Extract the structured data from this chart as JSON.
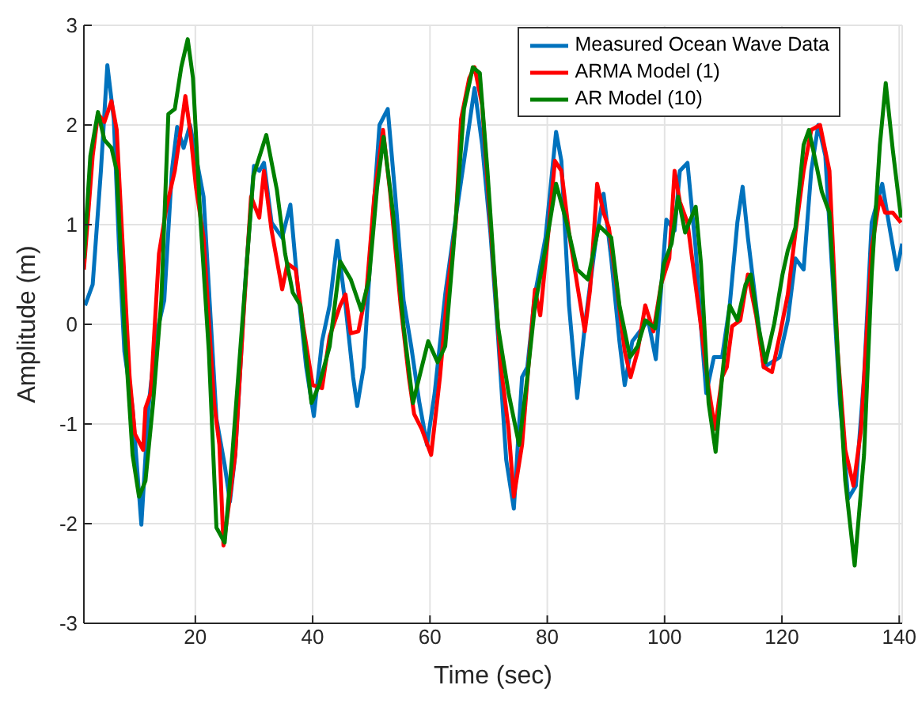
{
  "chart_data": {
    "type": "line",
    "xlabel": "Time (sec)",
    "ylabel": "Amplitude (m)",
    "xlim": [
      1,
      140.5
    ],
    "ylim": [
      -3,
      3
    ],
    "xticks": [
      20,
      40,
      60,
      80,
      100,
      120,
      140
    ],
    "yticks": [
      -3,
      -2,
      -1,
      0,
      1,
      2,
      3
    ],
    "grid": true,
    "legend": "top right",
    "marker": "none",
    "line_style": "solid",
    "series": [
      {
        "name": "Measured Ocean Wave Data",
        "color": "#0072bd",
        "x": [
          1.2,
          2.5,
          3.9,
          5.0,
          6.1,
          7.0,
          7.9,
          9.3,
          10.8,
          12.0,
          13.3,
          14.7,
          16.0,
          16.9,
          18.0,
          19.1,
          21.4,
          23.6,
          25.0,
          25.9,
          26.8,
          28.6,
          30.0,
          30.9,
          31.7,
          33.0,
          34.8,
          36.2,
          37.5,
          38.9,
          40.2,
          41.6,
          42.9,
          44.2,
          45.6,
          46.9,
          47.6,
          48.7,
          50.1,
          51.4,
          52.8,
          54.1,
          55.5,
          56.8,
          58.2,
          59.5,
          60.8,
          62.6,
          64.4,
          66.2,
          67.6,
          68.9,
          70.3,
          71.6,
          73.0,
          74.3,
          75.7,
          76.6,
          77.9,
          79.7,
          81.5,
          82.4,
          83.7,
          85.1,
          86.4,
          88.2,
          89.6,
          90.9,
          92.3,
          93.2,
          94.5,
          95.8,
          97.2,
          98.5,
          100.3,
          101.7,
          102.6,
          103.9,
          105.3,
          106.2,
          107.1,
          108.4,
          109.8,
          111.1,
          112.4,
          113.3,
          114.2,
          115.6,
          116.9,
          118.3,
          119.6,
          121.0,
          122.3,
          123.7,
          125.0,
          126.2,
          127.4,
          128.6,
          129.9,
          131.3,
          132.6,
          134.0,
          135.3,
          137.1,
          138.5,
          139.6,
          140.5
        ],
        "values": [
          0.19,
          0.4,
          1.54,
          2.6,
          2.06,
          0.76,
          -0.27,
          -0.84,
          -2.01,
          -0.84,
          -0.12,
          0.24,
          1.54,
          1.98,
          1.77,
          2.0,
          1.28,
          -0.95,
          -1.41,
          -1.78,
          -1.31,
          0.5,
          1.59,
          1.54,
          1.62,
          1.02,
          0.87,
          1.2,
          0.35,
          -0.43,
          -0.92,
          -0.17,
          0.19,
          0.84,
          0.19,
          -0.53,
          -0.82,
          -0.43,
          0.92,
          2.0,
          2.16,
          1.28,
          0.24,
          -0.22,
          -0.79,
          -1.21,
          -0.69,
          0.3,
          1.07,
          1.8,
          2.37,
          1.8,
          0.92,
          -0.12,
          -1.36,
          -1.85,
          -0.53,
          -0.43,
          0.3,
          0.87,
          1.93,
          1.64,
          0.19,
          -0.74,
          -0.02,
          0.81,
          1.31,
          0.66,
          -0.17,
          -0.61,
          -0.17,
          -0.07,
          0.04,
          -0.35,
          1.05,
          0.94,
          1.54,
          1.62,
          0.76,
          -0.02,
          -0.69,
          -0.33,
          -0.33,
          0.19,
          1.02,
          1.38,
          0.87,
          0.19,
          -0.43,
          -0.38,
          -0.33,
          0.04,
          0.66,
          0.55,
          1.54,
          2.0,
          1.69,
          0.5,
          -0.79,
          -1.75,
          -1.62,
          -0.53,
          1.02,
          1.41,
          0.92,
          0.55,
          0.81
        ]
      },
      {
        "name": "ARMA Model (1)",
        "color": "#ff0000",
        "x": [
          1.0,
          2.5,
          3.4,
          4.5,
          5.7,
          6.6,
          7.5,
          8.8,
          9.7,
          11.1,
          11.5,
          12.4,
          13.8,
          15.1,
          16.5,
          17.4,
          18.3,
          19.2,
          20.1,
          21.4,
          23.2,
          24.1,
          24.8,
          25.9,
          26.8,
          28.1,
          29.5,
          30.9,
          31.7,
          33.0,
          34.8,
          35.7,
          37.1,
          38.4,
          40.0,
          41.6,
          42.9,
          44.7,
          45.6,
          46.5,
          47.8,
          49.2,
          50.5,
          52.0,
          53.2,
          55.0,
          56.4,
          57.3,
          58.6,
          60.2,
          61.7,
          63.1,
          64.4,
          65.3,
          66.7,
          67.6,
          68.9,
          70.3,
          72.1,
          73.4,
          74.3,
          75.7,
          77.0,
          77.9,
          78.8,
          80.1,
          81.3,
          82.4,
          83.7,
          85.1,
          86.4,
          87.3,
          88.5,
          89.6,
          90.5,
          91.8,
          93.2,
          94.2,
          95.4,
          96.7,
          98.1,
          99.4,
          100.8,
          101.7,
          102.6,
          103.9,
          104.8,
          106.2,
          107.5,
          108.6,
          109.8,
          110.6,
          111.5,
          112.9,
          114.2,
          115.6,
          116.9,
          118.3,
          119.6,
          121.0,
          122.3,
          123.7,
          125.0,
          126.5,
          128.1,
          129.5,
          130.8,
          132.2,
          133.5,
          135.3,
          136.7,
          137.6,
          138.9,
          140.3
        ],
        "values": [
          0.55,
          1.69,
          2.11,
          2.03,
          2.24,
          1.95,
          0.92,
          -0.53,
          -1.1,
          -1.26,
          -0.84,
          -0.69,
          0.71,
          1.18,
          1.54,
          1.9,
          2.29,
          1.9,
          1.38,
          0.87,
          -0.79,
          -1.21,
          -2.22,
          -1.73,
          -1.31,
          -0.02,
          1.28,
          1.07,
          1.54,
          0.94,
          0.35,
          0.61,
          0.55,
          -0.02,
          -0.61,
          -0.64,
          -0.12,
          0.19,
          0.3,
          -0.09,
          -0.07,
          0.35,
          1.28,
          1.95,
          1.33,
          0.19,
          -0.53,
          -0.9,
          -1.05,
          -1.31,
          -0.53,
          0.4,
          1.02,
          2.06,
          2.47,
          2.58,
          2.2,
          1.02,
          -0.43,
          -1.05,
          -1.73,
          -1.21,
          -0.27,
          0.35,
          0.09,
          0.87,
          1.64,
          1.54,
          0.92,
          0.4,
          -0.07,
          0.35,
          1.41,
          1.12,
          0.97,
          0.4,
          -0.27,
          -0.53,
          -0.27,
          0.19,
          -0.07,
          0.4,
          0.66,
          1.54,
          1.23,
          1.02,
          0.61,
          -0.02,
          -0.64,
          -1.05,
          -0.53,
          -0.43,
          -0.02,
          0.04,
          0.5,
          0.09,
          -0.43,
          -0.48,
          -0.12,
          0.3,
          0.92,
          1.54,
          1.95,
          2.0,
          1.54,
          -0.27,
          -1.26,
          -1.62,
          -1.05,
          0.76,
          1.28,
          1.12,
          1.12,
          1.02
        ]
      },
      {
        "name": "AR Model (10)",
        "color": "#008000",
        "x": [
          1.0,
          2.1,
          3.4,
          4.5,
          5.7,
          6.6,
          7.9,
          9.3,
          10.4,
          11.5,
          12.8,
          14.2,
          15.4,
          16.5,
          17.6,
          18.7,
          19.6,
          20.9,
          22.3,
          23.6,
          25.0,
          26.3,
          28.1,
          29.9,
          32.1,
          33.9,
          35.3,
          36.6,
          37.9,
          39.8,
          41.1,
          42.9,
          44.7,
          46.5,
          48.3,
          49.6,
          51.0,
          52.1,
          53.7,
          55.5,
          57.1,
          58.6,
          59.7,
          61.3,
          62.6,
          64.0,
          65.8,
          67.3,
          68.5,
          69.8,
          71.6,
          73.4,
          75.2,
          76.6,
          77.9,
          79.7,
          81.5,
          83.3,
          85.1,
          86.9,
          88.8,
          90.9,
          92.3,
          94.1,
          95.4,
          96.7,
          98.4,
          99.9,
          101.2,
          102.3,
          103.5,
          105.3,
          106.2,
          107.5,
          108.7,
          109.8,
          111.1,
          112.4,
          113.8,
          114.7,
          116.0,
          117.2,
          118.7,
          120.1,
          121.0,
          122.3,
          123.7,
          124.6,
          125.9,
          126.8,
          128.1,
          129.5,
          130.8,
          132.4,
          134.0,
          135.3,
          136.7,
          137.7,
          138.9,
          140.3
        ],
        "values": [
          0.66,
          1.69,
          2.13,
          1.85,
          1.77,
          1.54,
          -0.02,
          -1.31,
          -1.73,
          -1.57,
          -0.79,
          0.24,
          2.11,
          2.16,
          2.58,
          2.86,
          2.47,
          1.02,
          -0.27,
          -2.04,
          -2.19,
          -1.31,
          0.09,
          1.49,
          1.9,
          1.35,
          0.71,
          0.32,
          0.19,
          -0.79,
          -0.61,
          -0.22,
          0.63,
          0.45,
          0.14,
          0.45,
          1.38,
          1.88,
          1.12,
          -0.02,
          -0.79,
          -0.43,
          -0.17,
          -0.38,
          -0.22,
          0.76,
          2.16,
          2.58,
          2.52,
          1.54,
          -0.02,
          -0.69,
          -1.21,
          -0.53,
          0.19,
          0.76,
          1.41,
          1.02,
          0.55,
          0.45,
          0.99,
          0.87,
          0.19,
          -0.33,
          -0.22,
          0.04,
          -0.04,
          0.61,
          0.81,
          1.28,
          0.92,
          1.18,
          0.61,
          -0.79,
          -1.28,
          -0.53,
          0.19,
          0.04,
          0.4,
          0.5,
          -0.02,
          -0.38,
          0.01,
          0.5,
          0.74,
          0.97,
          1.8,
          1.95,
          1.59,
          1.33,
          1.12,
          -0.27,
          -1.57,
          -2.42,
          -1.31,
          0.5,
          1.8,
          2.42,
          1.75,
          1.07
        ]
      }
    ]
  }
}
